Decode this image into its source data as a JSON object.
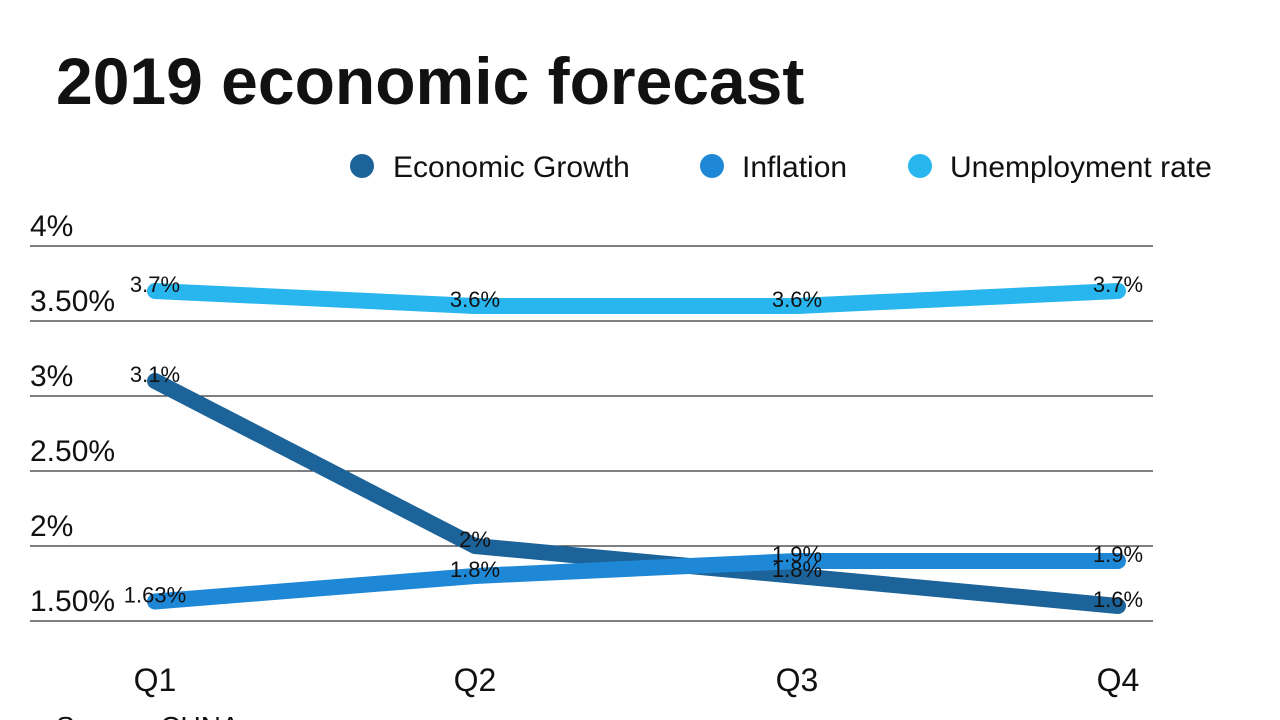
{
  "chart_data": {
    "type": "line",
    "title": "2019 economic forecast",
    "source": "Source: CUNA",
    "categories": [
      "Q1",
      "Q2",
      "Q3",
      "Q4"
    ],
    "series": [
      {
        "name": "Economic Growth",
        "color": "#1c6399",
        "values": [
          3.1,
          2,
          1.8,
          1.6
        ],
        "value_labels": [
          "3.1%",
          "2%",
          "1.8%",
          "1.6%"
        ]
      },
      {
        "name": "Inflation",
        "color": "#1e88d6",
        "values": [
          1.63,
          1.8,
          1.9,
          1.9
        ],
        "value_labels": [
          "1.63%",
          "1.8%",
          "1.9%",
          "1.9%"
        ]
      },
      {
        "name": "Unemployment rate",
        "color": "#29b6ee",
        "values": [
          3.7,
          3.6,
          3.6,
          3.7
        ],
        "value_labels": [
          "3.7%",
          "3.6%",
          "3.6%",
          "3.7%"
        ]
      }
    ],
    "ylim": [
      1.5,
      4
    ],
    "yticks": [
      {
        "value": 1.5,
        "label": "1.50%"
      },
      {
        "value": 2,
        "label": "2%"
      },
      {
        "value": 2.5,
        "label": "2.50%"
      },
      {
        "value": 3,
        "label": "3%"
      },
      {
        "value": 3.5,
        "label": "3.50%"
      },
      {
        "value": 4,
        "label": "4%"
      }
    ],
    "grid": true,
    "legend": "top-right"
  }
}
